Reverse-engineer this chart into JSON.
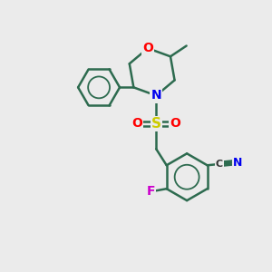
{
  "bg_color": "#ebebeb",
  "bond_color": "#2d6b4f",
  "bond_width": 1.8,
  "atom_colors": {
    "O": "#ff0000",
    "N": "#0000ee",
    "S": "#cccc00",
    "F": "#cc00cc",
    "C": "#333333"
  }
}
